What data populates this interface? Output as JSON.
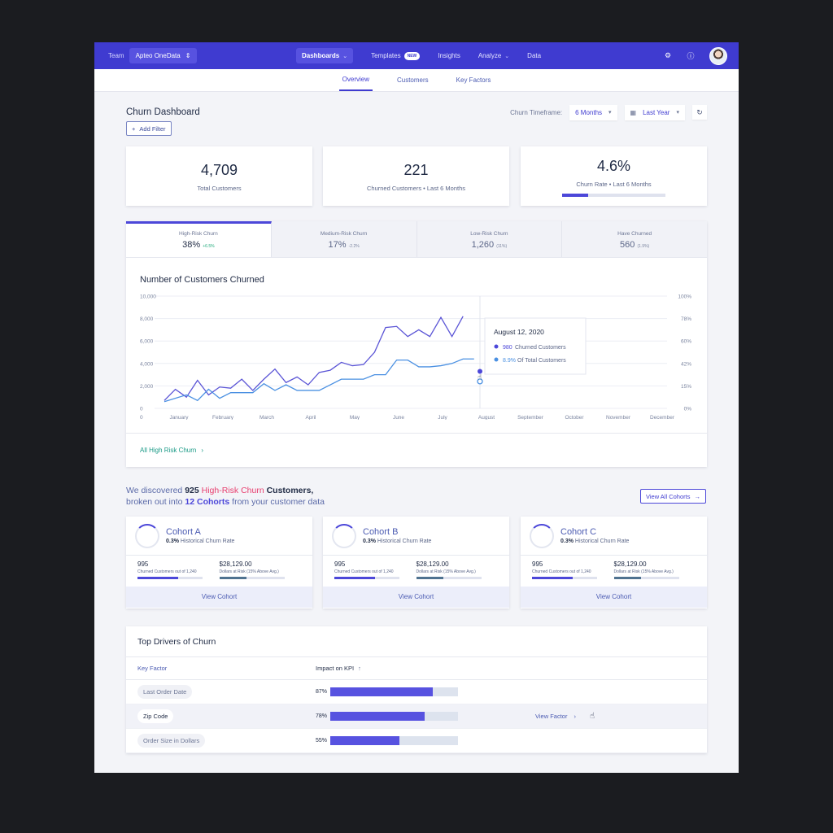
{
  "topnav": {
    "team_label": "Team",
    "team_value": "Apteo OneData",
    "items": [
      {
        "label": "Dashboards",
        "active": true,
        "caret": true
      },
      {
        "label": "Templates",
        "badge": "NEW"
      },
      {
        "label": "Insights"
      },
      {
        "label": "Analyze",
        "caret": true
      },
      {
        "label": "Data"
      }
    ]
  },
  "subtabs": [
    "Overview",
    "Customers",
    "Key Factors"
  ],
  "header": {
    "title": "Churn Dashboard",
    "timeframe_label": "Churn Timeframe:",
    "timeframe_value": "6 Months",
    "period_value": "Last Year",
    "add_filter": "Add Filter"
  },
  "kpis": [
    {
      "value": "4,709",
      "label": "Total Customers"
    },
    {
      "value": "221",
      "label": "Churned Customers • Last 6 Months"
    },
    {
      "value": "4.6%",
      "label": "Churn Rate • Last 6 Months",
      "bar_fraction": 0.25
    }
  ],
  "segments": [
    {
      "label": "High-Risk Churn",
      "value": "38%",
      "sub": "+6.5%"
    },
    {
      "label": "Medium-Risk Churn",
      "value": "17%",
      "sub": "-2.2%"
    },
    {
      "label": "Low-Risk Churn",
      "value": "1,260",
      "sub": "(11%)"
    },
    {
      "label": "Have Churned",
      "value": "560",
      "sub": "(1.9%)"
    }
  ],
  "chart": {
    "title": "Number of Customers Churned",
    "link": "All High Risk Churn",
    "tooltip": {
      "date": "August 12, 2020",
      "line1_value": "980",
      "line1_label": "Churned Customers",
      "line2_value": "8.9%",
      "line2_label": "Of Total Customers"
    }
  },
  "chart_data": {
    "type": "line",
    "title": "Number of Customers Churned",
    "x": [
      "January",
      "February",
      "March",
      "April",
      "May",
      "June",
      "July",
      "August",
      "September",
      "October",
      "November",
      "December"
    ],
    "left_ticks": [
      "10,000",
      "8,000",
      "6,000",
      "4,000",
      "2,000",
      "0"
    ],
    "right_ticks": [
      "100%",
      "78%",
      "60%",
      "42%",
      "15%",
      "0%"
    ],
    "ylim": [
      0,
      10000
    ],
    "series": [
      {
        "name": "Churned Customers",
        "color": "#5b55d6",
        "points": [
          [
            0,
            700
          ],
          [
            0.5,
            1700
          ],
          [
            1,
            1000
          ],
          [
            1.5,
            2500
          ],
          [
            2,
            1200
          ],
          [
            2.5,
            1900
          ],
          [
            3,
            1800
          ],
          [
            3.5,
            2600
          ],
          [
            4,
            1600
          ],
          [
            4.5,
            2600
          ],
          [
            5,
            3500
          ],
          [
            5.5,
            2300
          ],
          [
            6,
            2800
          ],
          [
            6.5,
            2100
          ],
          [
            7,
            3200
          ],
          [
            7.5,
            3400
          ],
          [
            8,
            4100
          ],
          [
            8.5,
            3800
          ],
          [
            9,
            3900
          ],
          [
            9.5,
            5000
          ],
          [
            10,
            7200
          ],
          [
            10.5,
            7300
          ],
          [
            11,
            6400
          ],
          [
            11.5,
            7000
          ],
          [
            12,
            6400
          ],
          [
            12.5,
            8100
          ],
          [
            13,
            6400
          ],
          [
            13.5,
            8200
          ]
        ]
      },
      {
        "name": "Of Total Customers",
        "color": "#4a90e2",
        "points": [
          [
            0,
            600
          ],
          [
            1,
            1200
          ],
          [
            1.5,
            700
          ],
          [
            2,
            1700
          ],
          [
            2.5,
            900
          ],
          [
            3,
            1400
          ],
          [
            3.5,
            1400
          ],
          [
            4,
            1400
          ],
          [
            4.5,
            2200
          ],
          [
            5,
            1600
          ],
          [
            5.5,
            2100
          ],
          [
            6,
            1600
          ],
          [
            6.5,
            1600
          ],
          [
            7,
            1600
          ],
          [
            7.5,
            2100
          ],
          [
            8,
            2600
          ],
          [
            8.5,
            2600
          ],
          [
            9,
            2600
          ],
          [
            9.5,
            3000
          ],
          [
            10,
            3000
          ],
          [
            10.5,
            4300
          ],
          [
            11,
            4300
          ],
          [
            11.5,
            3700
          ],
          [
            12,
            3700
          ],
          [
            12.5,
            3800
          ],
          [
            13,
            4000
          ],
          [
            13.5,
            4400
          ],
          [
            14,
            4400
          ]
        ]
      }
    ],
    "grid": true,
    "area_fill": true
  },
  "discovery": {
    "pre": "We discovered ",
    "count": "925",
    "segment": "High-Risk Churn",
    "mid": " Customers,",
    "line2_pre": "broken out into ",
    "cohorts": "12 Cohorts",
    "line2_post": " from your customer data",
    "view_all": "View All Cohorts"
  },
  "cohorts": [
    {
      "name": "Cohort A",
      "rate_value": "0.3%",
      "rate_label": "Historical Churn Rate",
      "stat1_value": "995",
      "stat1_label": "Churned Customers out of 1,240",
      "stat1_fraction": 0.62,
      "stat2_value": "$28,129.00",
      "stat2_label": "Dollars at Risk (15% Above Avg.)",
      "stat2_fraction": 0.42,
      "button": "View Cohort"
    },
    {
      "name": "Cohort B",
      "rate_value": "0.3%",
      "rate_label": "Historical Churn Rate",
      "stat1_value": "995",
      "stat1_label": "Churned Customers out of 1,240",
      "stat1_fraction": 0.62,
      "stat2_value": "$28,129.00",
      "stat2_label": "Dollars at Risk (15% Above Avg.)",
      "stat2_fraction": 0.42,
      "button": "View Cohort"
    },
    {
      "name": "Cohort C",
      "rate_value": "0.3%",
      "rate_label": "Historical Churn Rate",
      "stat1_value": "995",
      "stat1_label": "Churned Customers out of 1,240",
      "stat1_fraction": 0.62,
      "stat2_value": "$28,129.00",
      "stat2_label": "Dollars at Risk (15% Above Avg.)",
      "stat2_fraction": 0.42,
      "button": "View Cohort"
    }
  ],
  "drivers": {
    "title": "Top Drivers of Churn",
    "col_factor": "Key Factor",
    "col_impact": "Impact on KPI",
    "view_factor": "View Factor",
    "rows": [
      {
        "factor": "Last Order Date",
        "pct": "87%",
        "fraction": 0.8
      },
      {
        "factor": "Zip Code",
        "pct": "78%",
        "fraction": 0.74
      },
      {
        "factor": "Order Size in Dollars",
        "pct": "55%",
        "fraction": 0.54
      }
    ]
  },
  "colors": {
    "accent": "#3f3bd0",
    "pink": "#e83f6f",
    "teal": "#1a9a86"
  }
}
